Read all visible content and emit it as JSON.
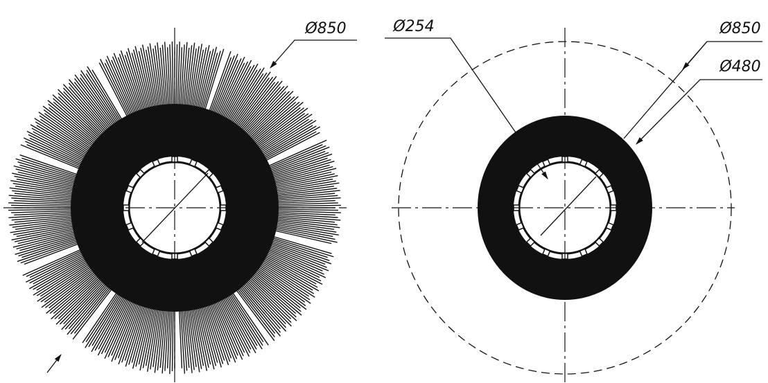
{
  "left_view": {
    "diameter_label": "Ø850"
  },
  "right_view": {
    "labels": [
      "Ø254",
      "Ø850",
      "Ø480"
    ]
  }
}
